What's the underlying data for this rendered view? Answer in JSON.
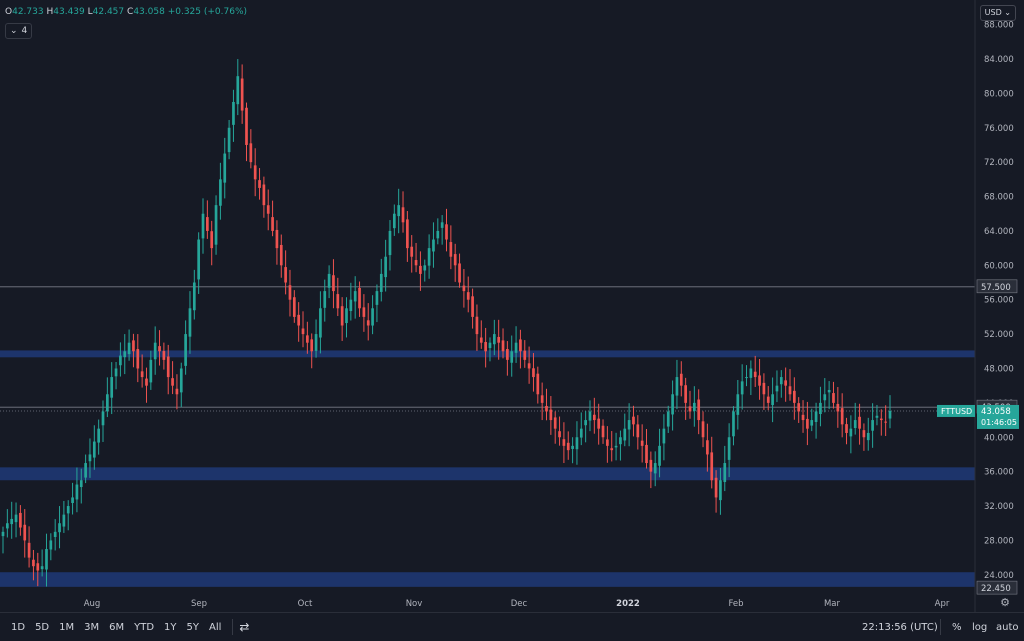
{
  "legend": {
    "o_label": "O",
    "o_value": "42.733",
    "h_label": "H",
    "h_value": "43.439",
    "l_label": "L",
    "l_value": "42.457",
    "c_label": "C",
    "c_value": "43.058",
    "change": "+0.325 (+0.76%)"
  },
  "indicators_count": "4",
  "currency_button": "USD",
  "price_axis": {
    "ticks": [
      "88.000",
      "84.000",
      "80.000",
      "76.000",
      "72.000",
      "68.000",
      "64.000",
      "60.000",
      "56.000",
      "52.000",
      "48.000",
      "44.000",
      "40.000",
      "36.000",
      "32.000",
      "28.000",
      "24.000"
    ],
    "tick_values": [
      88,
      84,
      80,
      76,
      72,
      68,
      64,
      60,
      56,
      52,
      48,
      44,
      40,
      36,
      32,
      28,
      24
    ],
    "labels": [
      {
        "text": "57.500",
        "value": 57.5
      },
      {
        "text": "43.500",
        "value": 43.5
      },
      {
        "text": "22.450",
        "value": 22.45
      }
    ],
    "last_price": "43.058",
    "countdown": "01:46:05",
    "symbol": "FTTUSD"
  },
  "time_axis": [
    "Aug",
    "Sep",
    "Oct",
    "Nov",
    "Dec",
    "2022",
    "Feb",
    "Mar",
    "Apr"
  ],
  "bottom_bar": {
    "ranges": [
      "1D",
      "5D",
      "1M",
      "3M",
      "6M",
      "YTD",
      "1Y",
      "5Y",
      "All"
    ],
    "clock": "22:13:56 (UTC)",
    "percent": "%",
    "log": "log",
    "auto": "auto"
  },
  "chart_data": {
    "type": "candlestick",
    "symbol": "FTTUSD",
    "y_range": [
      22,
      89
    ],
    "zones": [
      [
        49.3,
        50.1
      ],
      [
        35.0,
        36.5
      ],
      [
        22.6,
        24.3
      ]
    ],
    "horizontal_lines": [
      57.5,
      43.5
    ],
    "last_price": 43.058,
    "series_close": [
      29,
      30,
      30.5,
      31,
      29.5,
      28,
      26,
      25,
      24.5,
      25,
      27,
      28,
      29,
      30,
      31,
      32,
      33,
      34.5,
      35,
      37,
      38,
      39.5,
      41,
      43,
      45,
      47,
      48,
      49.5,
      50,
      51,
      50,
      48,
      47,
      46,
      49,
      51,
      50,
      49,
      47,
      46,
      45,
      48,
      52,
      55,
      58,
      63,
      66,
      64,
      62,
      67,
      70,
      73,
      76,
      79,
      82,
      78,
      74,
      72,
      70,
      69,
      67,
      66,
      64,
      62,
      60,
      58,
      56,
      54,
      53,
      52,
      51,
      50,
      52,
      55,
      57,
      59,
      57,
      55,
      53,
      55,
      56,
      57,
      55,
      54,
      53,
      55,
      57,
      59,
      61,
      64,
      66,
      67,
      65,
      62,
      61,
      60,
      59,
      60,
      62,
      63,
      64,
      65,
      63,
      61,
      60,
      58,
      57,
      56,
      54,
      52,
      51,
      50,
      51,
      52,
      51,
      50,
      49,
      50,
      51,
      50,
      49,
      48,
      47,
      45,
      44,
      43,
      42,
      41,
      40,
      39,
      38.5,
      39,
      40,
      41,
      42,
      43,
      42,
      41,
      40,
      39,
      38.5,
      39,
      40,
      41,
      42,
      41.5,
      40,
      39,
      37,
      36,
      37,
      39,
      41,
      43,
      45,
      47,
      46,
      44,
      43,
      44,
      42,
      40,
      38,
      35,
      33,
      35,
      37,
      40,
      43,
      45,
      46.5,
      47,
      48,
      47,
      46,
      45,
      44,
      45,
      46,
      47,
      46,
      45,
      44,
      43,
      42,
      41,
      42,
      43,
      44,
      45,
      45.5,
      44,
      43,
      41.5,
      40.5,
      41,
      42,
      41,
      40,
      40.5,
      42,
      42.5,
      42,
      41.8,
      43.058
    ]
  }
}
